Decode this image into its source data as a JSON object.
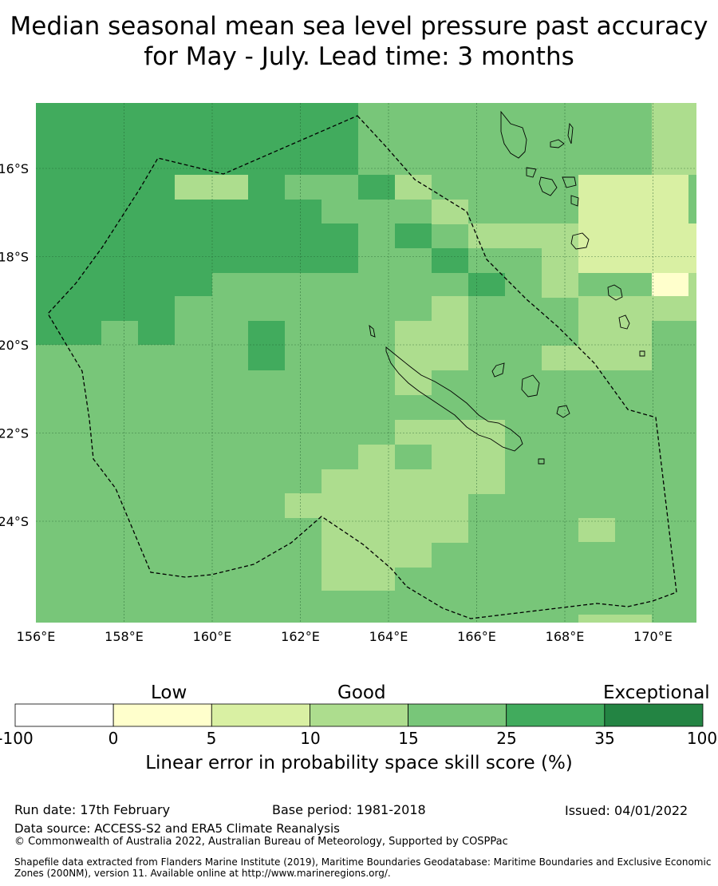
{
  "title": "Median seasonal mean sea level pressure past accuracy for May - July. Lead time: 3 months",
  "map": {
    "lon_ticks": [
      "156°E",
      "158°E",
      "160°E",
      "162°E",
      "164°E",
      "166°E",
      "168°E",
      "170°E"
    ],
    "lat_ticks": [
      "16°S",
      "18°S",
      "20°S",
      "22°S",
      "24°S"
    ],
    "lon_range": [
      156,
      171
    ],
    "lat_range": [
      -26.3,
      -14.5
    ],
    "colors": {
      "c0": "#ffffcc",
      "c5": "#d9f0a3",
      "c10": "#addd8e",
      "c15": "#78c679",
      "c25": "#41ab5d",
      "c35": "#238443",
      "neg": "#ffffff"
    }
  },
  "colorbar": {
    "categories": [
      "Low",
      "Good",
      "Exceptional"
    ],
    "ticks": [
      "-100",
      "0",
      "5",
      "10",
      "15",
      "25",
      "35",
      "100"
    ],
    "colors": [
      "#ffffff",
      "#ffffcc",
      "#d9f0a3",
      "#addd8e",
      "#78c679",
      "#41ab5d",
      "#238443"
    ],
    "label": "Linear error in probability space skill score (%)"
  },
  "footer": {
    "run_date": "Run date: 17th February",
    "base_period": "Base period: 1981-2018",
    "issued": "Issued: 04/01/2022",
    "data_source": "Data source: ACCESS-S2 and ERA5 Climate Reanalysis",
    "copyright": "© Commonwealth of Australia 2022, Australian Bureau of Meteorology, Supported by COSPPac",
    "shapefile": "Shapefile data extracted from Flanders Marine Institute (2019), Maritime Boundaries Geodatabase: Maritime Boundaries and Exclusive Economic Zones (200NM), version 11. Available online at http://www.marineregions.org/."
  }
}
